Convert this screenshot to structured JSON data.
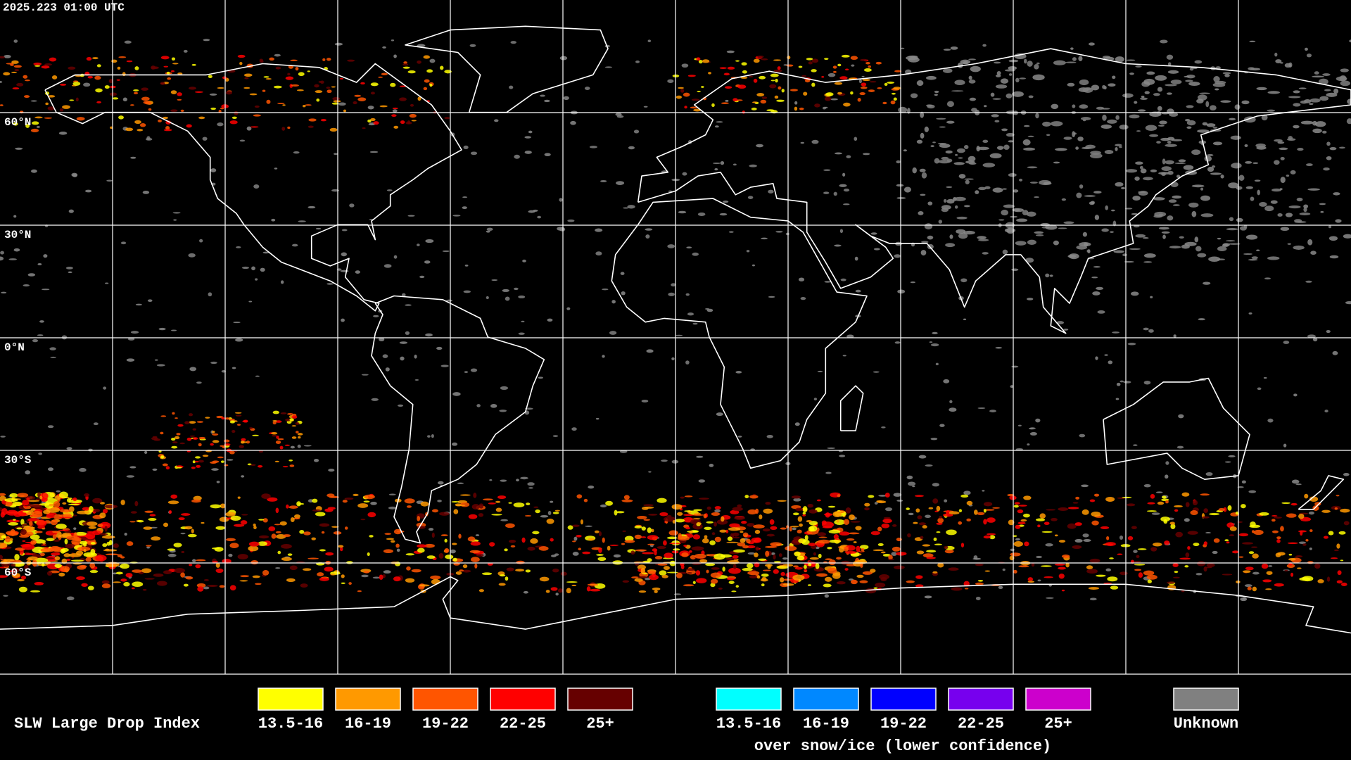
{
  "timestamp": "2025.223 01:00 UTC",
  "lat_labels": [
    "60°N",
    "30°N",
    "0°N",
    "30°S",
    "60°S"
  ],
  "legend": {
    "title": "SLW Large Drop Index",
    "items": [
      {
        "label": "13.5-16",
        "color": "#ffff00"
      },
      {
        "label": "16-19",
        "color": "#ff9900"
      },
      {
        "label": "19-22",
        "color": "#ff5500"
      },
      {
        "label": "22-25",
        "color": "#ff0000"
      },
      {
        "label": "25+",
        "color": "#660000"
      }
    ],
    "snow_items": [
      {
        "label": "13.5-16",
        "color": "#00ffff"
      },
      {
        "label": "16-19",
        "color": "#0088ff"
      },
      {
        "label": "19-22",
        "color": "#0000ff"
      },
      {
        "label": "22-25",
        "color": "#7700ee"
      },
      {
        "label": "25+",
        "color": "#cc00cc"
      }
    ],
    "snow_caption": "over snow/ice (lower confidence)",
    "unknown": {
      "label": "Unknown",
      "color": "#808080"
    }
  }
}
